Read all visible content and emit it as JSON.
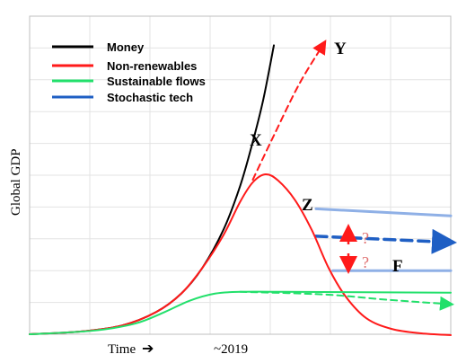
{
  "chart_data": {
    "type": "line",
    "title": "",
    "ylabel": "Global GDP",
    "xlabel": "Time",
    "x_marker_label": "~2019",
    "grid": true,
    "legend_position": "top-left",
    "legend": [
      {
        "name": "Money",
        "color": "#000000"
      },
      {
        "name": "Non-renewables",
        "color": "#ff1a1a"
      },
      {
        "name": "Sustainable flows",
        "color": "#22e06b"
      },
      {
        "name": "Stochastic tech",
        "color": "#1f5fc4"
      }
    ],
    "annotations": {
      "X": "X",
      "Y": "Y",
      "Z": "Z",
      "F": "F",
      "question_up": "?",
      "question_down": "?"
    },
    "series": [
      {
        "name": "Money",
        "style": "solid",
        "color": "#000000",
        "points": [
          [
            0,
            0.0
          ],
          [
            0.12,
            0.3
          ],
          [
            0.22,
            1.0
          ],
          [
            0.3,
            2.5
          ],
          [
            0.36,
            4.6
          ],
          [
            0.41,
            7.5
          ],
          [
            0.46,
            11.8
          ],
          [
            0.5,
            16.8
          ],
          [
            0.53,
            21.8
          ],
          [
            0.555,
            26.6
          ],
          [
            0.58,
            32.7
          ]
        ]
      },
      {
        "name": "Non-renewables",
        "style": "solid",
        "color": "#ff1a1a",
        "points": [
          [
            0,
            0.0
          ],
          [
            0.12,
            0.3
          ],
          [
            0.22,
            1.0
          ],
          [
            0.3,
            2.5
          ],
          [
            0.36,
            4.6
          ],
          [
            0.41,
            7.5
          ],
          [
            0.46,
            11.2
          ],
          [
            0.5,
            15.0
          ],
          [
            0.53,
            17.2
          ],
          [
            0.56,
            18.1
          ],
          [
            0.59,
            17.4
          ],
          [
            0.63,
            15.2
          ],
          [
            0.67,
            11.8
          ],
          [
            0.71,
            7.5
          ],
          [
            0.75,
            4.3
          ],
          [
            0.8,
            1.8
          ],
          [
            0.86,
            0.6
          ],
          [
            0.93,
            0.1
          ],
          [
            1.0,
            -0.1
          ]
        ]
      },
      {
        "name": "Non-renewables extrapolation",
        "style": "dashed",
        "color": "#ff1a1a",
        "points": [
          [
            0.53,
            17.5
          ],
          [
            0.58,
            22.5
          ],
          [
            0.64,
            28.3
          ],
          [
            0.7,
            33.0
          ]
        ]
      },
      {
        "name": "Sustainable flows",
        "style": "solid",
        "color": "#22e06b",
        "points": [
          [
            0,
            0.0
          ],
          [
            0.15,
            0.4
          ],
          [
            0.25,
            1.2
          ],
          [
            0.32,
            2.5
          ],
          [
            0.38,
            3.8
          ],
          [
            0.44,
            4.6
          ],
          [
            0.5,
            4.8
          ],
          [
            0.6,
            4.8
          ],
          [
            1.0,
            4.7
          ]
        ]
      },
      {
        "name": "Sustainable flows projection",
        "style": "dashed",
        "color": "#22e06b",
        "points": [
          [
            0.5,
            4.8
          ],
          [
            0.7,
            4.5
          ],
          [
            0.85,
            3.9
          ],
          [
            1.0,
            3.4
          ]
        ]
      },
      {
        "name": "Stochastic tech upper",
        "style": "band",
        "color": "#8fb0e6",
        "points": [
          [
            0.68,
            14.2
          ],
          [
            1.0,
            13.4
          ]
        ]
      },
      {
        "name": "Stochastic tech lower",
        "style": "band",
        "color": "#8fb0e6",
        "points": [
          [
            0.72,
            7.2
          ],
          [
            1.0,
            7.2
          ]
        ]
      },
      {
        "name": "Stochastic tech central",
        "style": "dashed-arrow",
        "color": "#1f5fc4",
        "points": [
          [
            0.68,
            11.1
          ],
          [
            1.0,
            10.4
          ]
        ]
      }
    ],
    "xlim": [
      0,
      1
    ],
    "ylim": [
      0,
      36
    ],
    "x_tick_count": 7,
    "y_tick_count": 10
  }
}
